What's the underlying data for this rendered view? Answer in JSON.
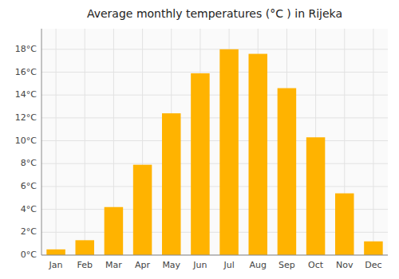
{
  "chart_data": {
    "type": "bar",
    "title": "Average monthly temperatures (°C ) in Rijeka",
    "categories": [
      "Jan",
      "Feb",
      "Mar",
      "Apr",
      "May",
      "Jun",
      "Jul",
      "Aug",
      "Sep",
      "Oct",
      "Nov",
      "Dec"
    ],
    "values": [
      0.5,
      1.3,
      4.2,
      7.9,
      12.4,
      15.9,
      18.0,
      17.6,
      14.6,
      10.3,
      5.4,
      1.2
    ],
    "color": "#FFB300",
    "ylim": [
      0,
      19.8
    ],
    "yticks": [
      {
        "value": 0,
        "label": "0°C"
      },
      {
        "value": 2,
        "label": "2°C"
      },
      {
        "value": 4,
        "label": "4°C"
      },
      {
        "value": 6,
        "label": "6°C"
      },
      {
        "value": 8,
        "label": "8°C"
      },
      {
        "value": 10,
        "label": "10°C"
      },
      {
        "value": 12,
        "label": "12°C"
      },
      {
        "value": 14,
        "label": "14°C"
      },
      {
        "value": 16,
        "label": "16°C"
      },
      {
        "value": 18,
        "label": "18°C"
      }
    ],
    "grid": true
  }
}
